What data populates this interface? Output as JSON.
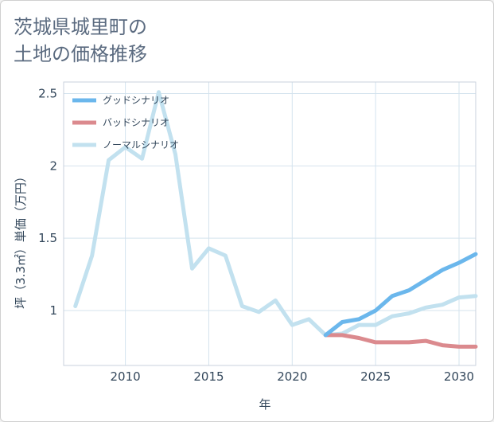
{
  "title_line1": "茨城県城里町の",
  "title_line2": "土地の価格推移",
  "chart_data": {
    "type": "line",
    "xlabel": "年",
    "ylabel": "坪（3.3㎡）単価（万円）",
    "xlim": [
      2006.3,
      2031
    ],
    "ylim": [
      0.62,
      2.58
    ],
    "xticks": [
      2010,
      2015,
      2020,
      2025,
      2030
    ],
    "yticks": [
      1,
      1.5,
      2,
      2.5
    ],
    "ytick_labels": [
      "1",
      "1.5",
      "2",
      "2.5"
    ],
    "grid": true,
    "legend_position": "top-left",
    "series": [
      {
        "name": "グッドシナリオ",
        "color": "#6bb7ec",
        "x": [
          2022,
          2023,
          2024,
          2025,
          2026,
          2027,
          2028,
          2029,
          2030,
          2031
        ],
        "values": [
          0.83,
          0.92,
          0.94,
          1.0,
          1.1,
          1.14,
          1.21,
          1.28,
          1.33,
          1.39
        ]
      },
      {
        "name": "バッドシナリオ",
        "color": "#db8a8e",
        "x": [
          2022,
          2023,
          2024,
          2025,
          2026,
          2027,
          2028,
          2029,
          2030,
          2031
        ],
        "values": [
          0.83,
          0.83,
          0.81,
          0.78,
          0.78,
          0.78,
          0.79,
          0.76,
          0.75,
          0.75
        ]
      },
      {
        "name": "ノーマルシナリオ",
        "color": "#c2e1ef",
        "x": [
          2007,
          2008,
          2009,
          2010,
          2011,
          2012,
          2013,
          2014,
          2015,
          2016,
          2017,
          2018,
          2019,
          2020,
          2021,
          2022,
          2023,
          2024,
          2025,
          2026,
          2027,
          2028,
          2029,
          2030,
          2031
        ],
        "values": [
          1.03,
          1.38,
          2.04,
          2.13,
          2.05,
          2.51,
          2.08,
          1.29,
          1.43,
          1.38,
          1.03,
          0.99,
          1.07,
          0.9,
          0.94,
          0.83,
          0.84,
          0.9,
          0.9,
          0.96,
          0.98,
          1.02,
          1.04,
          1.09,
          1.1
        ]
      }
    ]
  }
}
